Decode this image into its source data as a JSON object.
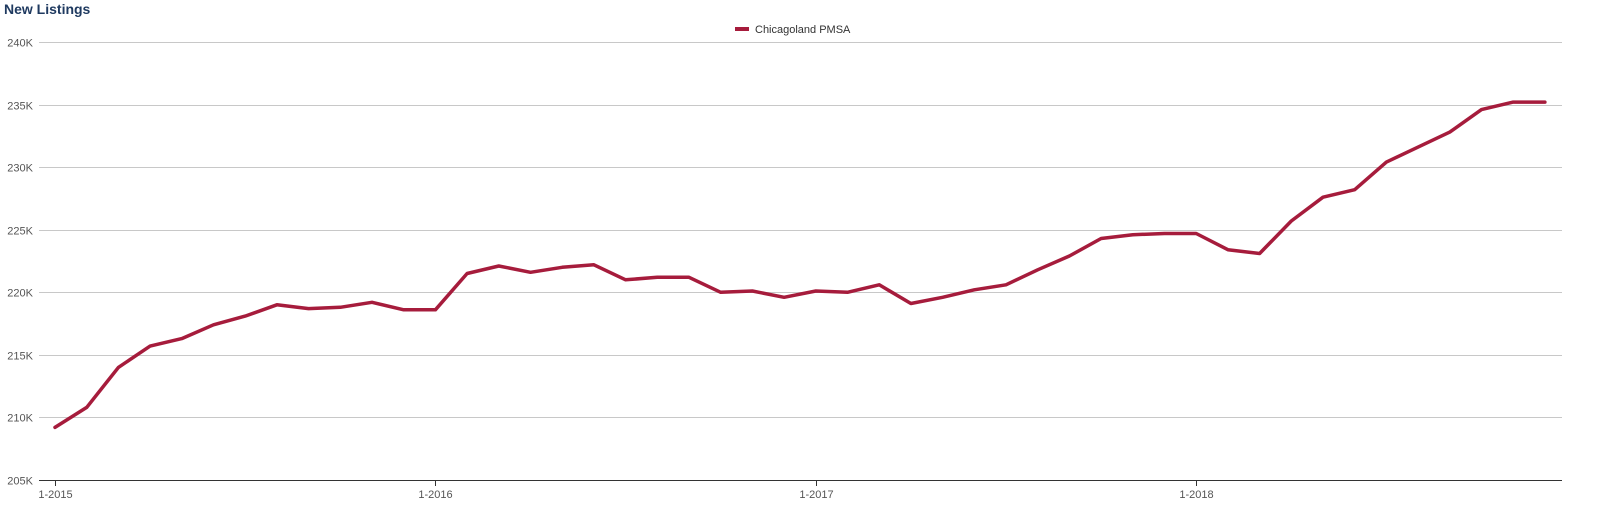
{
  "chart_data": {
    "type": "line",
    "title": "New Listings",
    "xlabel": "",
    "ylabel": "",
    "legend": {
      "position": "top-center"
    },
    "grid": true,
    "ylim": [
      205000,
      240000
    ],
    "y_ticks": [
      205000,
      210000,
      215000,
      220000,
      225000,
      230000,
      235000,
      240000
    ],
    "y_tick_labels": [
      "205K",
      "210K",
      "215K",
      "220K",
      "225K",
      "230K",
      "235K",
      "240K"
    ],
    "x_tick_labels": [
      "1-2015",
      "1-2016",
      "1-2017",
      "1-2018"
    ],
    "x": [
      "1-2015",
      "2-2015",
      "3-2015",
      "4-2015",
      "5-2015",
      "6-2015",
      "7-2015",
      "8-2015",
      "9-2015",
      "10-2015",
      "11-2015",
      "12-2015",
      "1-2016",
      "2-2016",
      "3-2016",
      "4-2016",
      "5-2016",
      "6-2016",
      "7-2016",
      "8-2016",
      "9-2016",
      "10-2016",
      "11-2016",
      "12-2016",
      "1-2017",
      "2-2017",
      "3-2017",
      "4-2017",
      "5-2017",
      "6-2017",
      "7-2017",
      "8-2017",
      "9-2017",
      "10-2017",
      "11-2017",
      "12-2017",
      "1-2018",
      "2-2018",
      "3-2018",
      "4-2018",
      "5-2018",
      "6-2018",
      "7-2018",
      "8-2018",
      "9-2018",
      "10-2018",
      "11-2018",
      "12-2018"
    ],
    "series": [
      {
        "name": "Chicagoland PMSA",
        "color": "#a61c3c",
        "values": [
          209200,
          210800,
          214000,
          215700,
          216300,
          217400,
          218100,
          219000,
          218700,
          218800,
          219200,
          218600,
          218600,
          221500,
          222100,
          221600,
          222000,
          222200,
          221000,
          221200,
          221200,
          220000,
          220100,
          219600,
          220100,
          220000,
          220600,
          219100,
          219600,
          220200,
          220600,
          221800,
          222900,
          224300,
          224600,
          224700,
          224700,
          223400,
          223100,
          225700,
          227600,
          228200,
          230400,
          231600,
          232800,
          234600,
          235200,
          235200
        ]
      }
    ]
  }
}
